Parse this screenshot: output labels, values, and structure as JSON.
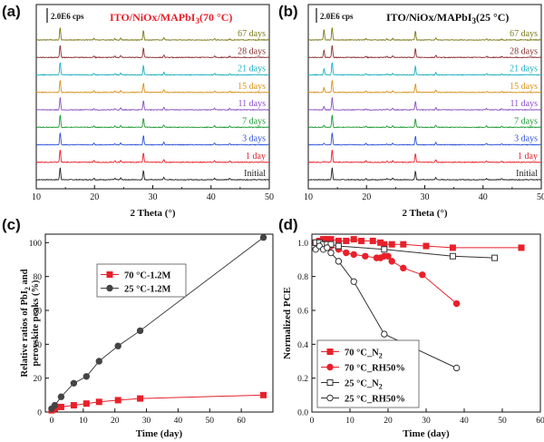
{
  "panels": {
    "a": {
      "label": "(a)",
      "title": "ITO/NiOx/MAPbI",
      "title_sub": "3",
      "title_tail": "(70 °C)",
      "title_color": "#e8202a",
      "scale_label": "2.0E6 cps"
    },
    "b": {
      "label": "(b)",
      "title": "ITO/NiOx/MAPbI",
      "title_sub": "3",
      "title_tail": "(25 °C)",
      "title_color": "#111111",
      "scale_label": "2.0E6 cps"
    },
    "c": {
      "label": "(c)"
    },
    "d": {
      "label": "(d)"
    }
  },
  "chart_data": [
    {
      "panel": "a",
      "type": "line",
      "title": "ITO/NiOx/MAPbI3(70 °C)",
      "xlabel": "2 Theta (°)",
      "ylabel": "",
      "xlim": [
        10,
        50
      ],
      "xticks": [
        10,
        20,
        30,
        40,
        50
      ],
      "peaks_2theta": [
        14.1,
        19.9,
        23.5,
        24.5,
        28.4,
        31.9,
        40.6,
        43.2
      ],
      "peak_heights": [
        1.0,
        0.12,
        0.1,
        0.14,
        0.75,
        0.2,
        0.12,
        0.1
      ],
      "series": [
        {
          "name": "Initial",
          "color": "#222222"
        },
        {
          "name": "1 day",
          "color": "#e8202a"
        },
        {
          "name": "3 days",
          "color": "#2f52d6"
        },
        {
          "name": "7 days",
          "color": "#1e9a33"
        },
        {
          "name": "11 days",
          "color": "#8a4fc3"
        },
        {
          "name": "15 days",
          "color": "#d8921a"
        },
        {
          "name": "21 days",
          "color": "#1bb0c0"
        },
        {
          "name": "28 days",
          "color": "#8b2f2f"
        },
        {
          "name": "67 days",
          "color": "#7a7a1a"
        }
      ]
    },
    {
      "panel": "b",
      "type": "line",
      "title": "ITO/NiOx/MAPbI3(25 °C)",
      "xlabel": "2 Theta (°)",
      "ylabel": "",
      "xlim": [
        10,
        50
      ],
      "xticks": [
        10,
        20,
        30,
        40,
        50
      ],
      "peaks_2theta": [
        12.7,
        14.1,
        19.9,
        23.5,
        24.5,
        28.4,
        31.9,
        40.6,
        43.2
      ],
      "peak_heights": [
        0.0,
        1.0,
        0.1,
        0.08,
        0.12,
        0.7,
        0.18,
        0.1,
        0.08
      ],
      "pbi2_growth": [
        0.0,
        0.05,
        0.1,
        0.18,
        0.28,
        0.38,
        0.5,
        0.6,
        0.85
      ],
      "series": [
        {
          "name": "Initial",
          "color": "#222222"
        },
        {
          "name": "1 day",
          "color": "#e8202a"
        },
        {
          "name": "3 days",
          "color": "#2f52d6"
        },
        {
          "name": "7 days",
          "color": "#1e9a33"
        },
        {
          "name": "11 days",
          "color": "#8a4fc3"
        },
        {
          "name": "15 days",
          "color": "#d8921a"
        },
        {
          "name": "21 days",
          "color": "#1bb0c0"
        },
        {
          "name": "28 days",
          "color": "#8b2f2f"
        },
        {
          "name": "67 days",
          "color": "#7a7a1a"
        }
      ]
    },
    {
      "panel": "c",
      "type": "line",
      "xlabel": "Time (day)",
      "ylabel_line1": "Relative ratios of PbI",
      "ylabel_sub": "2",
      "ylabel_tail": " and",
      "ylabel_line2": "perovskite peaks (%)",
      "xlim": [
        -2,
        70
      ],
      "ylim": [
        0,
        105
      ],
      "xticks": [
        0,
        10,
        20,
        30,
        40,
        50,
        60
      ],
      "yticks": [
        0,
        20,
        40,
        60,
        80,
        100
      ],
      "legend_position": "upper-left",
      "series": [
        {
          "name": "70 °C-1.2M",
          "color": "#e8202a",
          "marker": "square",
          "x": [
            0,
            1,
            3,
            7,
            11,
            15,
            21,
            28,
            67
          ],
          "y": [
            1,
            2,
            3,
            4,
            5,
            6,
            7,
            8,
            10
          ]
        },
        {
          "name": "25 °C-1.2M",
          "color": "#444444",
          "marker": "circle",
          "x": [
            0,
            1,
            3,
            7,
            11,
            15,
            21,
            28,
            67
          ],
          "y": [
            2,
            4,
            9,
            17,
            21,
            30,
            39,
            48,
            103
          ]
        }
      ]
    },
    {
      "panel": "d",
      "type": "line",
      "xlabel": "Time (day)",
      "ylabel": "Normalized PCE",
      "xlim": [
        0,
        60
      ],
      "ylim": [
        0.0,
        1.05
      ],
      "xticks": [
        0,
        10,
        20,
        30,
        40,
        50,
        60
      ],
      "yticks": [
        0.0,
        0.2,
        0.4,
        0.6,
        0.8,
        1.0
      ],
      "legend_position": "lower-left",
      "series": [
        {
          "name": "70 °C_N",
          "name_sub": "2",
          "color": "#e8202a",
          "marker": "square-filled",
          "x": [
            1,
            2,
            3,
            4,
            5,
            7,
            9,
            11,
            13,
            16,
            18,
            19,
            21,
            24,
            30,
            37,
            55
          ],
          "y": [
            1.0,
            1.01,
            1.02,
            1.02,
            1.02,
            1.01,
            1.01,
            1.02,
            1.01,
            1.01,
            1.0,
            0.99,
            0.99,
            0.99,
            0.98,
            0.97,
            0.97
          ]
        },
        {
          "name": "70 °C_RH50%",
          "name_sub": "",
          "color": "#e8202a",
          "marker": "circle-filled",
          "x": [
            1,
            2,
            3,
            4,
            5,
            7,
            9,
            11,
            14,
            17,
            18,
            19,
            20,
            21,
            24,
            29,
            38
          ],
          "y": [
            1.0,
            0.99,
            0.99,
            0.99,
            0.98,
            0.96,
            0.94,
            0.93,
            0.92,
            0.91,
            0.91,
            0.92,
            0.92,
            0.89,
            0.85,
            0.81,
            0.64
          ]
        },
        {
          "name": "25 °C_N",
          "name_sub": "2",
          "color": "#333333",
          "marker": "square-open",
          "x": [
            1,
            2,
            3,
            4,
            5,
            7,
            19,
            37,
            48
          ],
          "y": [
            1.0,
            1.0,
            0.99,
            0.99,
            0.99,
            0.98,
            0.96,
            0.92,
            0.91
          ]
        },
        {
          "name": "25 °C_RH50%",
          "name_sub": "",
          "color": "#333333",
          "marker": "circle-open",
          "x": [
            1,
            2,
            3,
            4,
            5,
            7,
            11,
            19,
            38
          ],
          "y": [
            0.96,
            0.98,
            0.96,
            0.97,
            0.94,
            0.89,
            0.77,
            0.46,
            0.26
          ]
        }
      ]
    }
  ]
}
